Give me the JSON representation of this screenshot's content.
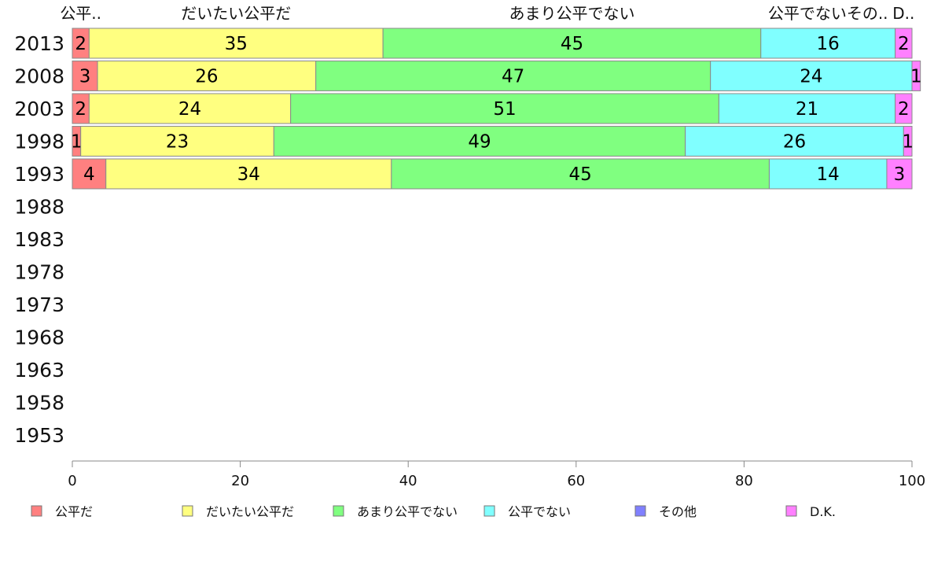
{
  "chart_data": {
    "type": "bar",
    "orientation": "horizontal-stacked",
    "categories": [
      "2013",
      "2008",
      "2003",
      "1998",
      "1993",
      "1988",
      "1983",
      "1978",
      "1973",
      "1968",
      "1963",
      "1958",
      "1953"
    ],
    "series": [
      {
        "name": "公平だ",
        "color": "#ff8080",
        "values": [
          2,
          3,
          2,
          1,
          4,
          null,
          null,
          null,
          null,
          null,
          null,
          null,
          null
        ]
      },
      {
        "name": "だいたい公平だ",
        "color": "#ffff80",
        "values": [
          35,
          26,
          24,
          23,
          34,
          null,
          null,
          null,
          null,
          null,
          null,
          null,
          null
        ]
      },
      {
        "name": "あまり公平でない",
        "color": "#80ff80",
        "values": [
          45,
          47,
          51,
          49,
          45,
          null,
          null,
          null,
          null,
          null,
          null,
          null,
          null
        ]
      },
      {
        "name": "公平でない",
        "color": "#80ffff",
        "values": [
          16,
          24,
          21,
          26,
          14,
          null,
          null,
          null,
          null,
          null,
          null,
          null,
          null
        ]
      },
      {
        "name": "その他",
        "color": "#8080ff",
        "values": [
          0,
          0,
          0,
          0,
          0,
          null,
          null,
          null,
          null,
          null,
          null,
          null,
          null
        ]
      },
      {
        "name": "D.K.",
        "color": "#ff80ff",
        "values": [
          2,
          1,
          2,
          1,
          3,
          null,
          null,
          null,
          null,
          null,
          null,
          null,
          null
        ]
      }
    ],
    "header_labels": [
      "公平..",
      "だいたい公平だ",
      "あまり公平でない",
      "公平でないその..",
      "D.."
    ],
    "xlim": [
      0,
      100
    ],
    "xticks": [
      0,
      20,
      40,
      60,
      80,
      100
    ],
    "grid": false,
    "legend": "bottom"
  }
}
